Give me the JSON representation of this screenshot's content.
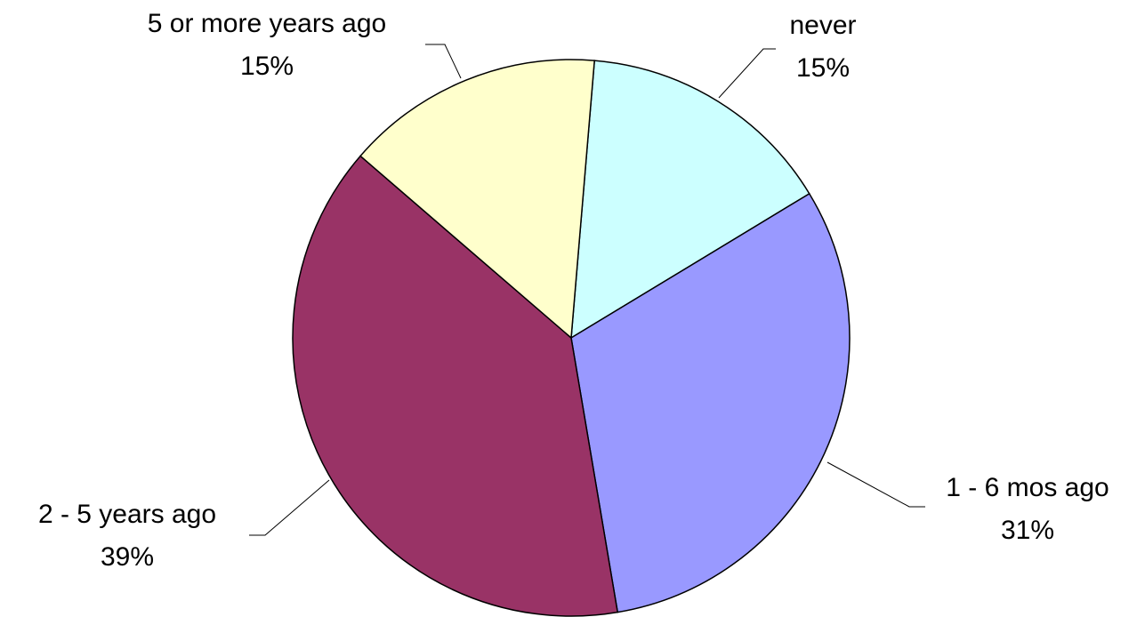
{
  "chart_data": {
    "type": "pie",
    "categories": [
      "never",
      "1 - 6 mos ago",
      "2 - 5 years ago",
      "5 or more years ago"
    ],
    "values": [
      15,
      31,
      39,
      15
    ],
    "value_labels": [
      "15%",
      "31%",
      "39%",
      "15%"
    ],
    "colors": [
      "#ccffff",
      "#9999ff",
      "#993366",
      "#ffffcc"
    ]
  }
}
